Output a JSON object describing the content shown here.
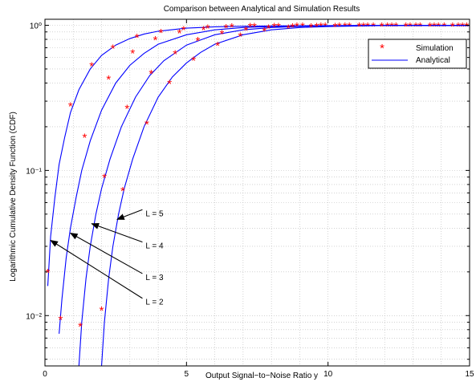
{
  "chart_data": {
    "type": "line",
    "title": "Comparison between Analytical and Simulation Results",
    "xlabel": "Output Signal−to−Noise Ratio y",
    "ylabel": "Logarithmic Cumulative Density Function (CDF)",
    "xlim": [
      0,
      15
    ],
    "ylim": [
      0.0045,
      1.1
    ],
    "yscale": "log",
    "grid": true,
    "legend_position": "top-right",
    "x_ticks": [
      0,
      5,
      10,
      15
    ],
    "x_tick_labels": [
      "0",
      "5",
      "10",
      "15"
    ],
    "y_ticks": [
      0.01,
      0.1,
      1
    ],
    "y_tick_labels": [
      "10⁻²",
      "10⁻¹",
      "10⁰"
    ],
    "legend": {
      "simulation_label": "Simulation",
      "analytical_label": "Analytical"
    },
    "colors": {
      "analytical": "#0000ff",
      "simulation": "#ff0000",
      "grid": "#b8b8b8",
      "arrow": "#000000"
    },
    "series": [
      {
        "L": 2,
        "label": "L = 2",
        "analytical": {
          "x": [
            0.1,
            0.2,
            0.35,
            0.5,
            0.7,
            0.9,
            1.2,
            1.6,
            2.0,
            2.5,
            3.0,
            3.5,
            4.0,
            5.0,
            6.0,
            7.0,
            8.0,
            10.0,
            12.0,
            15.0
          ],
          "y": [
            0.016,
            0.035,
            0.065,
            0.11,
            0.17,
            0.25,
            0.36,
            0.5,
            0.62,
            0.73,
            0.81,
            0.87,
            0.91,
            0.955,
            0.975,
            0.985,
            0.99,
            0.995,
            0.997,
            0.998
          ]
        },
        "simulation": {
          "x": [
            0.1,
            0.9,
            1.65,
            2.4,
            3.25,
            4.1,
            4.9,
            5.75,
            6.6,
            7.4,
            8.25,
            9.1,
            9.9,
            10.75,
            11.6,
            12.4,
            13.25,
            14.1,
            14.9
          ],
          "y": [
            0.02,
            0.28,
            0.53,
            0.7,
            0.83,
            0.9,
            0.94,
            0.965,
            0.98,
            0.99,
            0.99,
            0.995,
            0.995,
            0.995,
            0.995,
            0.995,
            0.995,
            0.995,
            0.995
          ]
        },
        "arrow_tip": [
          0.2,
          0.033
        ],
        "label_pos": [
          3.5,
          0.0125
        ]
      },
      {
        "L": 3,
        "label": "L = 3",
        "analytical": {
          "x": [
            0.5,
            0.6,
            0.75,
            0.9,
            1.1,
            1.3,
            1.6,
            2.0,
            2.5,
            3.0,
            3.5,
            4.0,
            5.0,
            6.0,
            7.0,
            8.0,
            10.0,
            12.0,
            15.0
          ],
          "y": [
            0.0075,
            0.013,
            0.025,
            0.04,
            0.065,
            0.1,
            0.16,
            0.26,
            0.4,
            0.53,
            0.64,
            0.74,
            0.86,
            0.93,
            0.965,
            0.98,
            0.993,
            0.997,
            0.998
          ]
        },
        "simulation": {
          "x": [
            0.55,
            1.4,
            2.25,
            3.1,
            3.9,
            4.75,
            5.6,
            6.4,
            7.25,
            8.1,
            8.9,
            9.75,
            10.6,
            11.4,
            12.25,
            13.1,
            13.9,
            14.75
          ],
          "y": [
            0.0095,
            0.17,
            0.43,
            0.65,
            0.8,
            0.89,
            0.94,
            0.97,
            0.985,
            0.99,
            0.995,
            0.995,
            0.995,
            0.995,
            0.995,
            0.995,
            0.995,
            0.995
          ]
        },
        "arrow_tip": [
          0.9,
          0.037
        ],
        "label_pos": [
          3.5,
          0.0185
        ]
      },
      {
        "L": 4,
        "label": "L = 4",
        "analytical": {
          "x": [
            1.2,
            1.3,
            1.45,
            1.6,
            1.8,
            2.0,
            2.3,
            2.7,
            3.2,
            3.7,
            4.2,
            5.0,
            6.0,
            7.0,
            8.0,
            9.0,
            10.0,
            12.0,
            15.0
          ],
          "y": [
            0.0045,
            0.009,
            0.018,
            0.03,
            0.05,
            0.075,
            0.12,
            0.2,
            0.32,
            0.45,
            0.57,
            0.73,
            0.86,
            0.93,
            0.965,
            0.982,
            0.99,
            0.996,
            0.998
          ]
        },
        "simulation": {
          "x": [
            1.25,
            2.1,
            2.9,
            3.75,
            4.6,
            5.4,
            6.25,
            7.1,
            7.9,
            8.75,
            9.6,
            10.4,
            11.25,
            12.1,
            12.9,
            13.75,
            14.6
          ],
          "y": [
            0.0085,
            0.09,
            0.27,
            0.47,
            0.64,
            0.79,
            0.88,
            0.93,
            0.965,
            0.98,
            0.99,
            0.995,
            0.995,
            0.995,
            0.995,
            0.995,
            0.995
          ]
        },
        "arrow_tip": [
          1.65,
          0.043
        ],
        "label_pos": [
          3.5,
          0.0305
        ]
      },
      {
        "L": 5,
        "label": "L = 5",
        "analytical": {
          "x": [
            2.0,
            2.1,
            2.25,
            2.4,
            2.6,
            2.8,
            3.1,
            3.5,
            4.0,
            4.5,
            5.0,
            5.5,
            6.0,
            7.0,
            8.0,
            9.0,
            10.0,
            12.0,
            15.0
          ],
          "y": [
            0.0045,
            0.009,
            0.018,
            0.03,
            0.05,
            0.075,
            0.12,
            0.2,
            0.32,
            0.44,
            0.55,
            0.65,
            0.74,
            0.86,
            0.93,
            0.965,
            0.98,
            0.995,
            0.998
          ]
        },
        "simulation": {
          "x": [
            2.0,
            2.75,
            3.6,
            4.4,
            5.25,
            6.1,
            6.9,
            7.75,
            8.6,
            9.4,
            10.25,
            11.1,
            11.9,
            12.75,
            13.6,
            14.4
          ],
          "y": [
            0.011,
            0.073,
            0.21,
            0.4,
            0.58,
            0.73,
            0.85,
            0.92,
            0.96,
            0.98,
            0.99,
            0.995,
            0.995,
            0.995,
            0.995,
            0.995
          ]
        },
        "arrow_tip": [
          2.55,
          0.046
        ],
        "label_pos": [
          3.5,
          0.051
        ]
      }
    ]
  }
}
